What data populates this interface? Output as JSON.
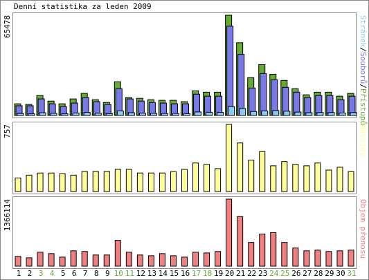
{
  "chart_data": [
    {
      "type": "bar",
      "title": "Denní statistika za leden 2009",
      "ylim": [
        0,
        65478
      ],
      "yticks": [
        65478
      ],
      "legend_separator": "/",
      "series": [
        {
          "name": "Přístupů",
          "color": "#66aa33",
          "values": [
            7600,
            7200,
            13000,
            9400,
            7600,
            10800,
            14400,
            10300,
            8500,
            22000,
            11700,
            11200,
            10300,
            9900,
            9900,
            9000,
            16100,
            15200,
            15200,
            65478,
            47500,
            24700,
            33200,
            26900,
            22900,
            17500,
            13500,
            15200,
            15200,
            12600,
            14400
          ]
        },
        {
          "name": "Souborů",
          "color": "#7878e8",
          "values": [
            6300,
            6300,
            10800,
            7600,
            5800,
            8100,
            11700,
            9000,
            7200,
            17500,
            10800,
            9400,
            8500,
            8100,
            7600,
            7600,
            13900,
            12600,
            12600,
            58300,
            39900,
            17900,
            27400,
            23300,
            18400,
            15200,
            11700,
            13000,
            13000,
            10300,
            12600
          ]
        },
        {
          "name": "Stránek",
          "color": "#88ccf0",
          "values": [
            1300,
            1100,
            1800,
            1400,
            1100,
            1600,
            2000,
            1500,
            1200,
            3000,
            1800,
            1500,
            1400,
            1300,
            1300,
            1200,
            2300,
            2100,
            2000,
            5800,
            4500,
            2600,
            3000,
            3200,
            2800,
            2200,
            1800,
            1900,
            1900,
            1600,
            1900
          ]
        }
      ]
    },
    {
      "type": "bar",
      "ylim": [
        0,
        757
      ],
      "yticks": [
        757
      ],
      "series": [
        {
          "name": "Návštěv",
          "color": "#ffff99",
          "values": [
            153,
            185,
            209,
            209,
            201,
            185,
            225,
            225,
            225,
            250,
            250,
            209,
            209,
            209,
            225,
            250,
            322,
            306,
            258,
            757,
            548,
            354,
            451,
            290,
            338,
            306,
            290,
            322,
            242,
            274,
            225
          ]
        }
      ]
    },
    {
      "type": "bar",
      "ylim": [
        0,
        1366114
      ],
      "yticks": [
        1366114
      ],
      "categories": [
        "1",
        "2",
        "3",
        "4",
        "5",
        "6",
        "7",
        "8",
        "9",
        "10",
        "11",
        "12",
        "13",
        "14",
        "15",
        "16",
        "17",
        "18",
        "19",
        "20",
        "21",
        "22",
        "23",
        "24",
        "25",
        "26",
        "27",
        "28",
        "29",
        "30",
        "31"
      ],
      "category_colors": [
        "#000000",
        "#000000",
        "#66aa33",
        "#66aa33",
        "#000000",
        "#000000",
        "#000000",
        "#000000",
        "#000000",
        "#66aa33",
        "#66aa33",
        "#000000",
        "#000000",
        "#000000",
        "#000000",
        "#000000",
        "#66aa33",
        "#66aa33",
        "#000000",
        "#000000",
        "#000000",
        "#000000",
        "#000000",
        "#66aa33",
        "#66aa33",
        "#000000",
        "#000000",
        "#000000",
        "#000000",
        "#000000",
        "#66aa33"
      ],
      "series": [
        {
          "name": "Objem přenosu",
          "color": "#f08080",
          "values": [
            199000,
            171000,
            285000,
            256000,
            185000,
            313000,
            299000,
            228000,
            228000,
            527000,
            285000,
            228000,
            213000,
            256000,
            213000,
            185000,
            285000,
            270000,
            299000,
            1366114,
            1010000,
            484000,
            655000,
            683000,
            484000,
            370000,
            313000,
            327000,
            299000,
            313000,
            327000
          ]
        }
      ]
    }
  ]
}
